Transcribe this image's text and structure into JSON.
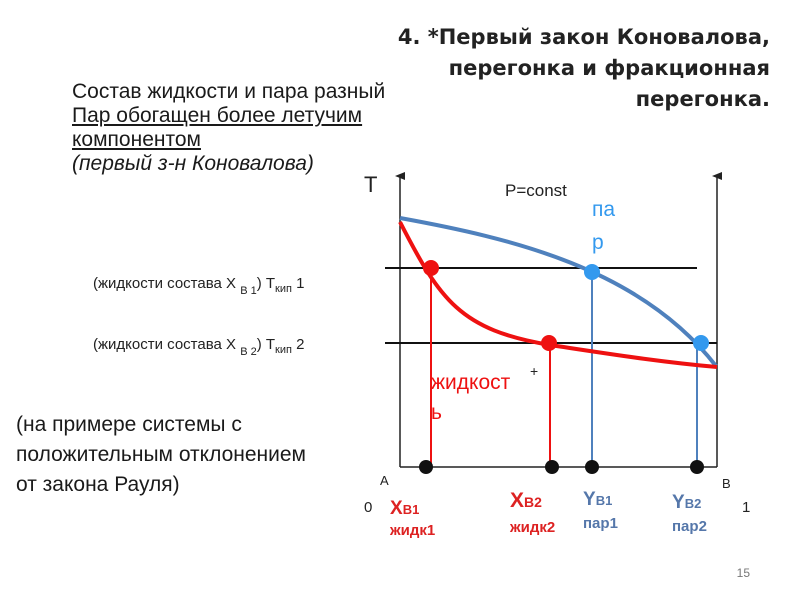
{
  "title": {
    "line1": "4. *Первый закон Коновалова,",
    "line2": "перегонка и фракционная",
    "line3": "перегонка."
  },
  "lead": {
    "line1": "Состав жидкости и пара разный",
    "line2": " Пар обогащен более летучим",
    "line3": "компонентом",
    "line4": "(первый з-н Коновалова)"
  },
  "example": {
    "line1": "(на примере системы с",
    "line2": "положительным отклонением",
    "line3": "от закона Рауля)"
  },
  "diagram": {
    "axis_t": "T",
    "pconst": "P=const",
    "vapor_label_1": "па",
    "vapor_label_2": "р",
    "liquid_label_1": "жидкост",
    "liquid_label_2": "ь",
    "plus": "+",
    "corner_a": "A",
    "corner_b": "B",
    "x0": "0",
    "x1": "1",
    "row1": {
      "pre": "(жидкости состава X ",
      "sub1": "B 1",
      "mid": ") T",
      "sub2": "кип",
      "post": " 1"
    },
    "row2": {
      "pre": "(жидкости состава X ",
      "sub1": "B 2",
      "mid": ") T",
      "sub2": "кип",
      "post": " 2"
    },
    "xb1": {
      "letter": "Х",
      "sub": "B1",
      "caption": "жидк1"
    },
    "xb2": {
      "letter": "Х",
      "sub": "B2",
      "caption": "жидк2"
    },
    "yb1": {
      "letter": "Y",
      "sub": "B1",
      "caption": "пар1"
    },
    "yb2": {
      "letter": "Y",
      "sub": "B2",
      "caption": "пар2"
    },
    "colors": {
      "liquid": "#ee1111",
      "vapor": "#4f81bd",
      "vapor_dot": "#3399ee",
      "label_red": "#dd2222",
      "label_blue": "#5577aa",
      "axis": "#222222"
    }
  },
  "page_number": "15"
}
